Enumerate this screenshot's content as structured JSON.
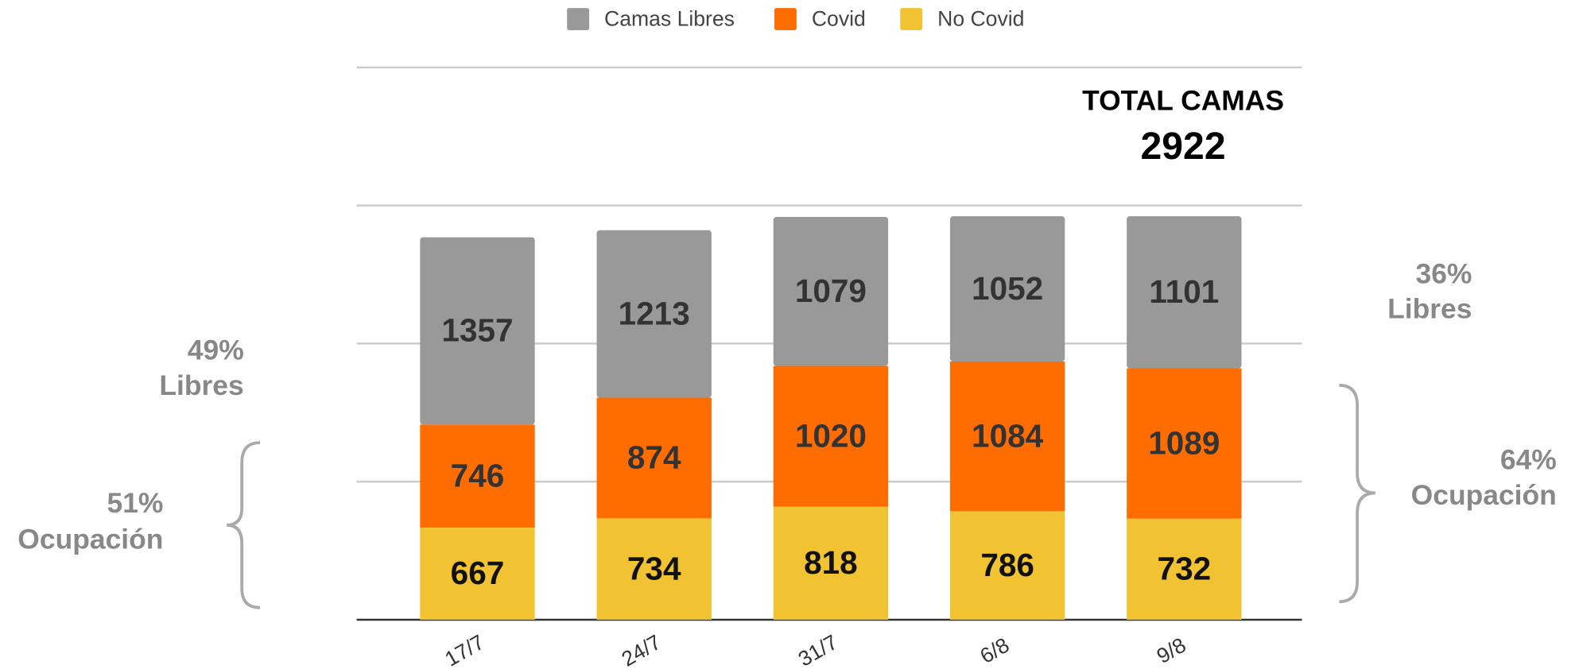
{
  "chart_data": {
    "type": "stacked_bar",
    "categories": [
      "17/7",
      "24/7",
      "31/7",
      "6/8",
      "9/8"
    ],
    "series": [
      {
        "name": "Camas Libres",
        "color": "#999999",
        "values": [
          1357,
          1213,
          1079,
          1052,
          1101
        ]
      },
      {
        "name": "Covid",
        "color": "#ff6d01",
        "values": [
          746,
          874,
          1020,
          1084,
          1089
        ]
      },
      {
        "name": "No Covid",
        "color": "#f1c232",
        "values": [
          667,
          734,
          818,
          786,
          732
        ]
      }
    ],
    "ylim": [
      0,
      4000
    ],
    "yticks": [
      0,
      1000,
      2000,
      3000,
      4000
    ],
    "grid": true,
    "legend": "top",
    "annotations": [
      "TOTAL CAMAS",
      "2922",
      "49%",
      "Libres",
      "51%",
      "Ocupación",
      "36%",
      "Libres",
      "64%",
      "Ocupación"
    ]
  }
}
